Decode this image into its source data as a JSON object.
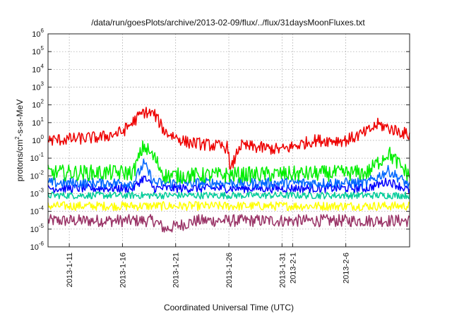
{
  "chart_data": {
    "type": "line",
    "title": "/data/run/goesPlots/archive/2013-02-09/flux/../flux/31daysMoonFluxes.txt",
    "xlabel": "Coordinated Universal Time (UTC)",
    "ylabel_parts": [
      "protons/cm",
      "2",
      "-s-sr-MeV"
    ],
    "y_scale": "log",
    "ylim": [
      1e-06,
      1000000.0
    ],
    "x_range": [
      "2013-01-09",
      "2013-02-12"
    ],
    "grid": true,
    "y_ticks": [
      {
        "base": "10",
        "exp": "-6",
        "value": 1e-06
      },
      {
        "base": "10",
        "exp": "-5",
        "value": 1e-05
      },
      {
        "base": "10",
        "exp": "-4",
        "value": 0.0001
      },
      {
        "base": "10",
        "exp": "-3",
        "value": 0.001
      },
      {
        "base": "10",
        "exp": "-2",
        "value": 0.01
      },
      {
        "base": "10",
        "exp": "-1",
        "value": 0.1
      },
      {
        "base": "10",
        "exp": "0",
        "value": 1
      },
      {
        "base": "10",
        "exp": "1",
        "value": 10
      },
      {
        "base": "10",
        "exp": "2",
        "value": 100
      },
      {
        "base": "10",
        "exp": "3",
        "value": 1000
      },
      {
        "base": "10",
        "exp": "4",
        "value": 10000
      },
      {
        "base": "10",
        "exp": "5",
        "value": 100000
      },
      {
        "base": "10",
        "exp": "6",
        "value": 1000000
      }
    ],
    "x_ticks": [
      {
        "label": "2013-1-11",
        "date": "2013-01-11"
      },
      {
        "label": "2013-1-16",
        "date": "2013-01-16"
      },
      {
        "label": "2013-1-21",
        "date": "2013-01-21"
      },
      {
        "label": "2013-1-26",
        "date": "2013-01-26"
      },
      {
        "label": "2013-1-31",
        "date": "2013-01-31"
      },
      {
        "label": "2013-2-1",
        "date": "2013-02-01"
      },
      {
        "label": "2013-2-6",
        "date": "2013-02-06"
      }
    ],
    "series": [
      {
        "color": "#993366",
        "base": 3e-05,
        "amp": 0.35,
        "points": [
          [
            "2013-01-09",
            3e-05
          ],
          [
            "2013-01-19",
            3e-05
          ],
          [
            "2013-01-20",
            1e-05
          ],
          [
            "2013-01-23",
            3e-05
          ],
          [
            "2013-02-12",
            3e-05
          ]
        ]
      },
      {
        "color": "#ffff00",
        "base": 0.0002,
        "amp": 0.25,
        "points": [
          [
            "2013-01-09",
            0.0002
          ],
          [
            "2013-02-12",
            0.0002
          ]
        ]
      },
      {
        "color": "#00cc99",
        "base": 0.0008,
        "amp": 0.2,
        "points": [
          [
            "2013-01-09",
            0.0008
          ],
          [
            "2013-02-12",
            0.0008
          ]
        ]
      },
      {
        "color": "#0000ff",
        "base": 0.002,
        "amp": 0.25,
        "points": [
          [
            "2013-01-09",
            0.002
          ],
          [
            "2013-01-17",
            0.002
          ],
          [
            "2013-01-18",
            0.008
          ],
          [
            "2013-01-19",
            0.002
          ],
          [
            "2013-02-08",
            0.002
          ],
          [
            "2013-02-10",
            0.005
          ],
          [
            "2013-02-12",
            0.0015
          ]
        ]
      },
      {
        "color": "#0066ff",
        "base": 0.004,
        "amp": 0.3,
        "points": [
          [
            "2013-01-09",
            0.004
          ],
          [
            "2013-01-17",
            0.004
          ],
          [
            "2013-01-18",
            0.05
          ],
          [
            "2013-01-19",
            0.004
          ],
          [
            "2013-02-08",
            0.004
          ],
          [
            "2013-02-10",
            0.02
          ],
          [
            "2013-02-12",
            0.003
          ]
        ]
      },
      {
        "color": "#00ee00",
        "base": 0.015,
        "amp": 0.45,
        "points": [
          [
            "2013-01-09",
            0.015
          ],
          [
            "2013-01-17",
            0.015
          ],
          [
            "2013-01-18",
            0.5
          ],
          [
            "2013-01-19",
            0.1
          ],
          [
            "2013-01-20",
            0.01
          ],
          [
            "2013-02-08",
            0.015
          ],
          [
            "2013-02-10",
            0.2
          ],
          [
            "2013-02-12",
            0.01
          ]
        ]
      },
      {
        "color": "#ee0000",
        "base": 1,
        "amp": 0.35,
        "points": [
          [
            "2013-01-09",
            1
          ],
          [
            "2013-01-14",
            1.5
          ],
          [
            "2013-01-16",
            3
          ],
          [
            "2013-01-18",
            40
          ],
          [
            "2013-01-19",
            30
          ],
          [
            "2013-01-20",
            3
          ],
          [
            "2013-01-22",
            0.8
          ],
          [
            "2013-01-26",
            0.4
          ],
          [
            "2013-01-26",
            0.01
          ],
          [
            "2013-01-27",
            0.5
          ],
          [
            "2013-01-31",
            0.3
          ],
          [
            "2013-02-03",
            1
          ],
          [
            "2013-02-06",
            1
          ],
          [
            "2013-02-08",
            3
          ],
          [
            "2013-02-09",
            8
          ],
          [
            "2013-02-12",
            2
          ]
        ]
      }
    ]
  }
}
